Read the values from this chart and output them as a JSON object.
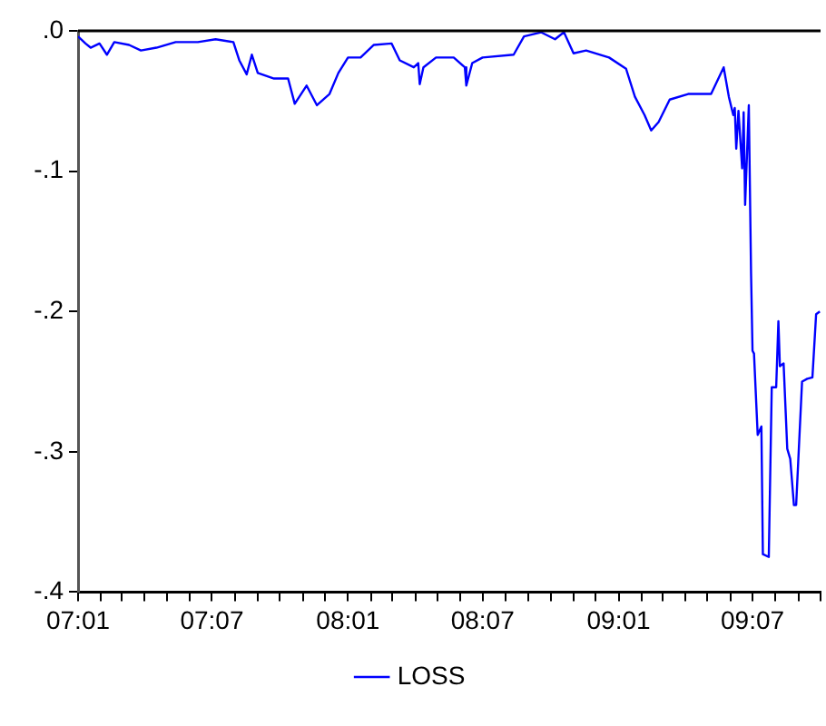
{
  "chart_data": {
    "type": "line",
    "legend": "bottom",
    "marker": "none",
    "line_style": "solid",
    "grid": false,
    "xlim": [
      "2007-01",
      "2009-10"
    ],
    "xticks": [
      {
        "value": "2007-01",
        "label": "07:01"
      },
      {
        "value": "2007-02",
        "label": null
      },
      {
        "value": "2007-03",
        "label": null
      },
      {
        "value": "2007-04",
        "label": null
      },
      {
        "value": "2007-05",
        "label": null
      },
      {
        "value": "2007-06",
        "label": null
      },
      {
        "value": "2007-07",
        "label": "07:07"
      },
      {
        "value": "2007-08",
        "label": null
      },
      {
        "value": "2007-09",
        "label": null
      },
      {
        "value": "2007-10",
        "label": null
      },
      {
        "value": "2007-11",
        "label": null
      },
      {
        "value": "2007-12",
        "label": null
      },
      {
        "value": "2008-01",
        "label": "08:01"
      },
      {
        "value": "2008-02",
        "label": null
      },
      {
        "value": "2008-03",
        "label": null
      },
      {
        "value": "2008-04",
        "label": null
      },
      {
        "value": "2008-05",
        "label": null
      },
      {
        "value": "2008-06",
        "label": null
      },
      {
        "value": "2008-07",
        "label": "08:07"
      },
      {
        "value": "2008-08",
        "label": null
      },
      {
        "value": "2008-09",
        "label": null
      },
      {
        "value": "2008-10",
        "label": null
      },
      {
        "value": "2008-11",
        "label": null
      },
      {
        "value": "2008-12",
        "label": null
      },
      {
        "value": "2009-01",
        "label": "09:01"
      },
      {
        "value": "2009-02",
        "label": null
      },
      {
        "value": "2009-03",
        "label": null
      },
      {
        "value": "2009-04",
        "label": null
      },
      {
        "value": "2009-05",
        "label": null
      },
      {
        "value": "2009-06",
        "label": null
      },
      {
        "value": "2009-07",
        "label": "09:07"
      },
      {
        "value": "2009-08",
        "label": null
      },
      {
        "value": "2009-09",
        "label": null
      },
      {
        "value": "2009-10",
        "label": null
      }
    ],
    "ylim": [
      -0.4,
      0
    ],
    "yticks": [
      {
        "value": -0.4,
        "label": "-.4"
      },
      {
        "value": -0.3,
        "label": "-.3"
      },
      {
        "value": -0.2,
        "label": "-.2"
      },
      {
        "value": -0.1,
        "label": "-.1"
      },
      {
        "value": 0,
        "label": ".0"
      }
    ],
    "series": [
      {
        "name": "LOSS",
        "color": "#0000ff",
        "x": [
          "2007-01-01",
          "2007-01-11",
          "2007-01-18",
          "2007-01-30",
          "2007-02-09",
          "2007-02-19",
          "2007-03-11",
          "2007-03-27",
          "2007-04-17",
          "2007-05-13",
          "2007-06-12",
          "2007-07-06",
          "2007-07-30",
          "2007-08-07",
          "2007-08-17",
          "2007-08-24",
          "2007-09-01",
          "2007-09-23",
          "2007-10-12",
          "2007-10-21",
          "2007-11-06",
          "2007-11-20",
          "2007-12-07",
          "2007-12-19",
          "2008-01-01",
          "2008-01-18",
          "2008-02-05",
          "2008-02-29",
          "2008-03-11",
          "2008-03-30",
          "2008-04-05",
          "2008-04-07",
          "2008-04-12",
          "2008-04-29",
          "2008-05-23",
          "2008-06-07",
          "2008-06-09",
          "2008-06-17",
          "2008-07-01",
          "2008-08-12",
          "2008-08-26",
          "2008-09-18",
          "2008-10-07",
          "2008-10-19",
          "2008-11-01",
          "2008-11-18",
          "2008-12-19",
          "2009-01-11",
          "2009-01-23",
          "2009-02-05",
          "2009-02-14",
          "2009-02-24",
          "2009-03-11",
          "2009-04-05",
          "2009-05-06",
          "2009-05-23",
          "2009-05-30",
          "2009-06-05",
          "2009-06-07",
          "2009-06-09",
          "2009-06-12",
          "2009-06-17",
          "2009-06-19",
          "2009-06-21",
          "2009-06-26",
          "2009-06-29",
          "2009-07-01",
          "2009-07-03",
          "2009-07-08",
          "2009-07-13",
          "2009-07-15",
          "2009-07-23",
          "2009-07-27",
          "2009-08-02",
          "2009-08-05",
          "2009-08-07",
          "2009-08-12",
          "2009-08-17",
          "2009-08-21",
          "2009-08-26",
          "2009-08-29",
          "2009-09-06",
          "2009-09-13",
          "2009-09-20",
          "2009-09-25",
          "2009-09-30"
        ],
        "values": [
          -0.004,
          -0.009,
          -0.012,
          -0.009,
          -0.017,
          -0.008,
          -0.01,
          -0.014,
          -0.012,
          -0.008,
          -0.008,
          -0.006,
          -0.008,
          -0.021,
          -0.031,
          -0.017,
          -0.03,
          -0.034,
          -0.034,
          -0.052,
          -0.039,
          -0.053,
          -0.045,
          -0.03,
          -0.019,
          -0.019,
          -0.01,
          -0.009,
          -0.021,
          -0.026,
          -0.023,
          -0.038,
          -0.026,
          -0.019,
          -0.019,
          -0.026,
          -0.039,
          -0.023,
          -0.019,
          -0.017,
          -0.004,
          -0.001,
          -0.006,
          -0.001,
          -0.016,
          -0.014,
          -0.019,
          -0.027,
          -0.047,
          -0.06,
          -0.071,
          -0.065,
          -0.049,
          -0.045,
          -0.045,
          -0.026,
          -0.047,
          -0.06,
          -0.055,
          -0.084,
          -0.057,
          -0.098,
          -0.058,
          -0.124,
          -0.053,
          -0.172,
          -0.228,
          -0.23,
          -0.288,
          -0.282,
          -0.373,
          -0.375,
          -0.254,
          -0.254,
          -0.207,
          -0.239,
          -0.237,
          -0.298,
          -0.305,
          -0.338,
          -0.338,
          -0.25,
          -0.248,
          -0.247,
          -0.202,
          -0.2
        ]
      }
    ]
  }
}
